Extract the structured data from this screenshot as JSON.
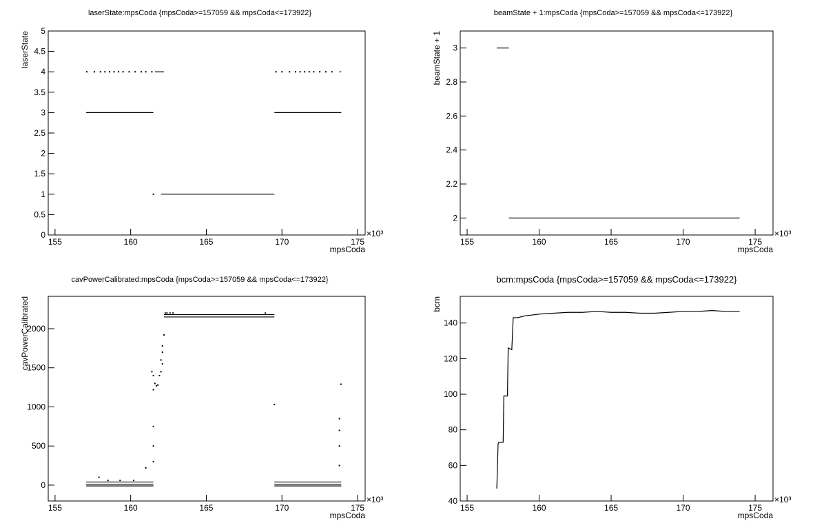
{
  "chart_data": [
    {
      "type": "scatter",
      "title": "laserState:mpsCoda {mpsCoda>=157059 && mpsCoda<=173922}",
      "x_label": "mpsCoda",
      "y_label": "laserState",
      "x_exponent": "×10³",
      "xlim": [
        154.55,
        175.5
      ],
      "xticks": [
        155,
        160,
        165,
        170,
        175
      ],
      "ylim": [
        0,
        5
      ],
      "yticks": [
        0,
        0.5,
        1,
        1.5,
        2,
        2.5,
        3,
        3.5,
        4,
        4.5,
        5
      ],
      "series": [
        {
          "style": "line",
          "color": "#000000",
          "x": [
            157.06,
            161.5
          ],
          "values": [
            3,
            3
          ]
        },
        {
          "style": "line",
          "color": "#000000",
          "x": [
            169.5,
            173.92
          ],
          "values": [
            3,
            3
          ]
        },
        {
          "style": "line",
          "color": "#000000",
          "x": [
            162.0,
            169.5
          ],
          "values": [
            1,
            1
          ]
        },
        {
          "style": "line",
          "color": "#000000",
          "x": [
            161.6,
            162.2
          ],
          "values": [
            4,
            4
          ]
        },
        {
          "style": "line",
          "color": "#000000",
          "x": [
            173.8,
            173.92
          ],
          "values": [
            4,
            4
          ]
        },
        {
          "style": "dots",
          "color": "#000000",
          "x": [
            157.1,
            157.6,
            158.0,
            158.3,
            158.6,
            158.9,
            159.2,
            159.5,
            159.9,
            160.3,
            160.7,
            161.0,
            161.4,
            161.5,
            169.6,
            170.0,
            170.5,
            170.9,
            171.2,
            171.5,
            171.8,
            172.1,
            172.5,
            172.9,
            173.3
          ],
          "values": [
            4,
            4,
            4,
            4,
            4,
            4,
            4,
            4,
            4,
            4,
            4,
            4,
            4,
            1,
            4,
            4,
            4,
            4,
            4,
            4,
            4,
            4,
            4,
            4,
            4
          ]
        }
      ]
    },
    {
      "type": "scatter",
      "title": "beamState + 1:mpsCoda {mpsCoda>=157059 && mpsCoda<=173922}",
      "x_label": "mpsCoda",
      "y_label": "beamState + 1",
      "x_exponent": "×10³",
      "xlim": [
        154.52,
        176.24
      ],
      "xticks": [
        155,
        160,
        165,
        170,
        175
      ],
      "ylim": [
        1.9,
        3.1
      ],
      "yticks": [
        2,
        2.2,
        2.4,
        2.6,
        2.8,
        3
      ],
      "series": [
        {
          "style": "line",
          "color": "#000000",
          "x": [
            157.06,
            157.9
          ],
          "values": [
            3,
            3
          ]
        },
        {
          "style": "line",
          "color": "#000000",
          "x": [
            157.9,
            173.92
          ],
          "values": [
            2,
            2
          ]
        }
      ]
    },
    {
      "type": "scatter",
      "title": "cavPowerCalibrated:mpsCoda {mpsCoda>=157059 && mpsCoda<=173922}",
      "x_label": "mpsCoda",
      "y_label": "cavPowerCalibrated",
      "x_exponent": "×10³",
      "xlim": [
        154.55,
        175.5
      ],
      "xticks": [
        155,
        160,
        165,
        170,
        175
      ],
      "ylim": [
        -203,
        2414
      ],
      "yticks": [
        0,
        500,
        1000,
        1500,
        2000
      ],
      "series": [
        {
          "style": "line",
          "color": "#000000",
          "x": [
            157.06,
            161.5
          ],
          "values": [
            -10,
            -10
          ]
        },
        {
          "style": "line",
          "color": "#000000",
          "x": [
            157.06,
            161.5
          ],
          "values": [
            10,
            10
          ]
        },
        {
          "style": "line",
          "color": "#000000",
          "x": [
            157.06,
            161.5
          ],
          "values": [
            40,
            40
          ]
        },
        {
          "style": "line",
          "color": "#000000",
          "x": [
            169.5,
            173.92
          ],
          "values": [
            -10,
            -10
          ]
        },
        {
          "style": "line",
          "color": "#000000",
          "x": [
            169.5,
            173.92
          ],
          "values": [
            10,
            10
          ]
        },
        {
          "style": "line",
          "color": "#000000",
          "x": [
            169.5,
            173.92
          ],
          "values": [
            40,
            40
          ]
        },
        {
          "style": "line",
          "color": "#000000",
          "x": [
            162.2,
            169.5
          ],
          "values": [
            2150,
            2150
          ]
        },
        {
          "style": "line",
          "color": "#000000",
          "x": [
            162.2,
            169.5
          ],
          "values": [
            2180,
            2180
          ]
        },
        {
          "style": "dots",
          "color": "#000000",
          "x": [
            157.9,
            158.5,
            159.3,
            160.2,
            161.0,
            161.5,
            161.5,
            161.5,
            161.5,
            161.4,
            161.5,
            161.6,
            161.7,
            161.8,
            161.9,
            162.0,
            162.0,
            162.1,
            162.1,
            162.1,
            162.2,
            162.3,
            162.4,
            162.6,
            162.8,
            168.9,
            169.5,
            173.8,
            173.8,
            173.8,
            173.8,
            173.9
          ],
          "values": [
            100,
            60,
            60,
            60,
            220,
            300,
            500,
            750,
            1220,
            1450,
            1400,
            1300,
            1270,
            1280,
            1400,
            1450,
            1600,
            1700,
            1550,
            1780,
            1920,
            2200,
            2200,
            2200,
            2200,
            2200,
            1030,
            250,
            500,
            700,
            850,
            1290
          ]
        }
      ]
    },
    {
      "type": "scatter",
      "title": "bcm:mpsCoda {mpsCoda>=157059 && mpsCoda<=173922}",
      "x_label": "mpsCoda",
      "y_label": "bcm",
      "x_exponent": "×10³",
      "xlim": [
        154.52,
        176.24
      ],
      "xticks": [
        155,
        160,
        165,
        170,
        175
      ],
      "ylim": [
        40,
        155
      ],
      "yticks": [
        40,
        60,
        80,
        100,
        120,
        140
      ],
      "series": [
        {
          "style": "line",
          "color": "#000000",
          "x": [
            157.06,
            157.15,
            157.2,
            157.5,
            157.55,
            157.8,
            157.85,
            158.1,
            158.2,
            158.5,
            159,
            160,
            161,
            162,
            163,
            164,
            165,
            166,
            167,
            168,
            169,
            170,
            171,
            172,
            173,
            173.92
          ],
          "values": [
            47,
            72,
            73,
            73,
            99,
            99,
            126,
            125,
            143,
            143,
            144,
            145,
            145.5,
            146,
            146,
            146.5,
            146,
            146,
            145.5,
            145.5,
            146,
            146.5,
            146.5,
            147,
            146.5,
            146.5
          ]
        }
      ]
    }
  ]
}
